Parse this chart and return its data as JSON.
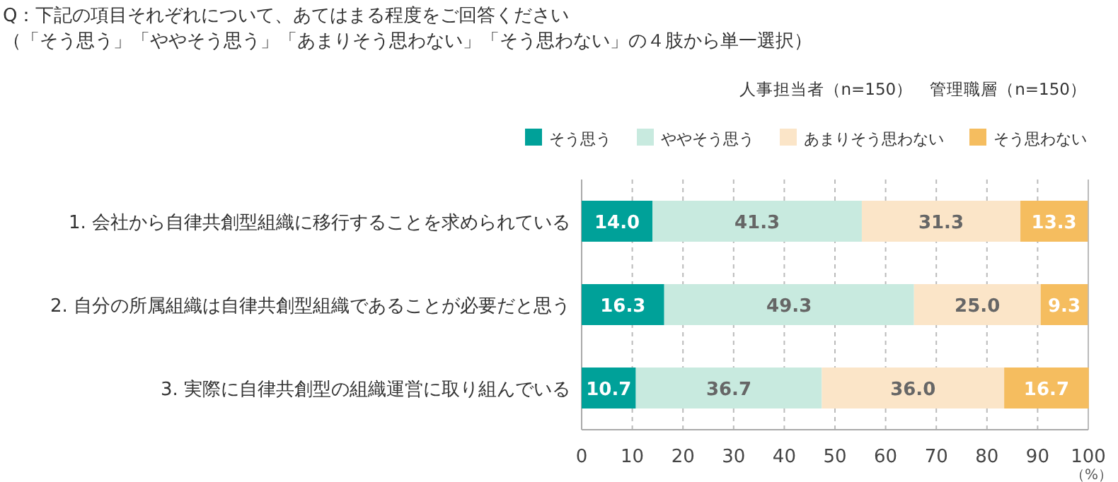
{
  "chart_data": {
    "type": "bar",
    "orientation": "horizontal",
    "stacked": true,
    "title": "Q：下記の項目それぞれについて、あてはまる程度をご回答ください",
    "subtitle": "（「そう思う」「ややそう思う」「あまりそう思わない」「そう思わない」の４肢から単一選択）",
    "annotations": [
      "人事担当者（n=150）　管理職層（n=150）"
    ],
    "xlabel": "（%）",
    "categories": [
      "1. 会社から自律共創型組織に移行することを求められている",
      "2. 自分の所属組織は自律共創型組織であることが必要だと思う",
      "3. 実際に自律共創型の組織運営に取り組んでいる"
    ],
    "series": [
      {
        "name": "そう思う",
        "color": "#00a199",
        "values": [
          14.0,
          16.3,
          10.7
        ],
        "value_labels": [
          "14.0",
          "16.3",
          "10.7"
        ]
      },
      {
        "name": "ややそう思う",
        "color": "#c8eadf",
        "values": [
          41.3,
          49.3,
          36.7
        ],
        "value_labels": [
          "41.3",
          "49.3",
          "36.7"
        ]
      },
      {
        "name": "あまりそう思わない",
        "color": "#fbe5c8",
        "values": [
          31.3,
          25.0,
          36.0
        ],
        "value_labels": [
          "31.3",
          "25.0",
          "36.0"
        ]
      },
      {
        "name": "そう思わない",
        "color": "#f5bd5f",
        "values": [
          13.3,
          9.3,
          16.7
        ],
        "value_labels": [
          "13.3",
          "9.3",
          "16.7"
        ]
      }
    ],
    "xlim": [
      0,
      100
    ],
    "xticks": [
      0,
      10,
      20,
      30,
      40,
      50,
      60,
      70,
      80,
      90,
      100
    ],
    "grid": "x",
    "legend": "top"
  }
}
